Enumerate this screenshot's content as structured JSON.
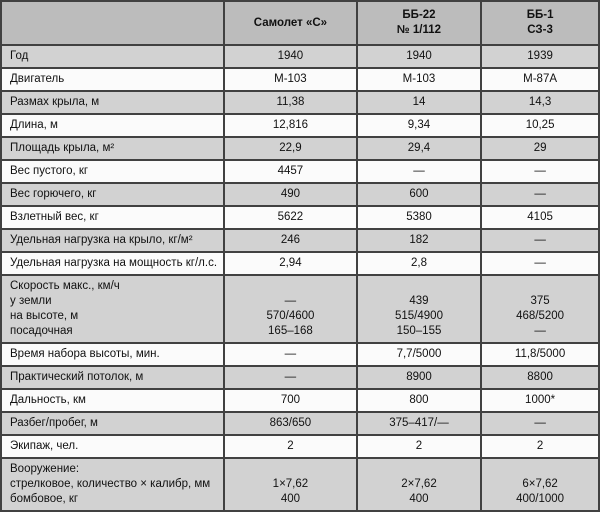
{
  "accent_colors": {
    "header_bg": "#bcbcbc",
    "row_shaded_bg": "#d2d2d2",
    "row_plain_bg": "#fbfbfb",
    "border": "#414141",
    "text": "#111111"
  },
  "table": {
    "columns": [
      "",
      "Самолет «С»",
      "ББ-22\n№ 1/112",
      "ББ-1\nСЗ-3"
    ],
    "rows": [
      {
        "label": "Год",
        "c1": "1940",
        "c2": "1940",
        "c3": "1939"
      },
      {
        "label": "Двигатель",
        "c1": "М-103",
        "c2": "М-103",
        "c3": "М-87А"
      },
      {
        "label": "Размах крыла, м",
        "c1": "11,38",
        "c2": "14",
        "c3": "14,3"
      },
      {
        "label": "Длина, м",
        "c1": "12,816",
        "c2": "9,34",
        "c3": "10,25"
      },
      {
        "label": "Площадь крыла, м²",
        "c1": "22,9",
        "c2": "29,4",
        "c3": "29"
      },
      {
        "label": "Вес пустого, кг",
        "c1": "4457",
        "c2": "—",
        "c3": "—"
      },
      {
        "label": "Вес горючего, кг",
        "c1": "490",
        "c2": "600",
        "c3": "—"
      },
      {
        "label": "Взлетный вес, кг",
        "c1": "5622",
        "c2": "5380",
        "c3": "4105"
      },
      {
        "label": "Удельная нагрузка на крыло, кг/м²",
        "c1": "246",
        "c2": "182",
        "c3": "—"
      },
      {
        "label": "Удельная нагрузка на мощность кг/л.с.",
        "c1": "2,94",
        "c2": "2,8",
        "c3": "—"
      },
      {
        "label": "Скорость макс., км/ч\nу земли\nна высоте, м\nпосадочная",
        "c1": " \n—\n570/4600\n165–168",
        "c2": " \n439\n515/4900\n150–155",
        "c3": " \n375\n468/5200\n—"
      },
      {
        "label": "Время набора высоты, мин.",
        "c1": "—",
        "c2": "7,7/5000",
        "c3": "11,8/5000"
      },
      {
        "label": "Практический потолок, м",
        "c1": "—",
        "c2": "8900",
        "c3": "8800"
      },
      {
        "label": "Дальность, км",
        "c1": "700",
        "c2": "800",
        "c3": "1000*"
      },
      {
        "label": "Разбег/пробег, м",
        "c1": "863/650",
        "c2": "375–417/—",
        "c3": "—"
      },
      {
        "label": "Экипаж, чел.",
        "c1": "2",
        "c2": "2",
        "c3": "2"
      },
      {
        "label": "Вооружение:\nстрелковое, количество × калибр, мм\nбомбовое, кг",
        "c1": " \n1×7,62\n400",
        "c2": " \n2×7,62\n400",
        "c3": " \n6×7,62\n400/1000"
      }
    ]
  }
}
